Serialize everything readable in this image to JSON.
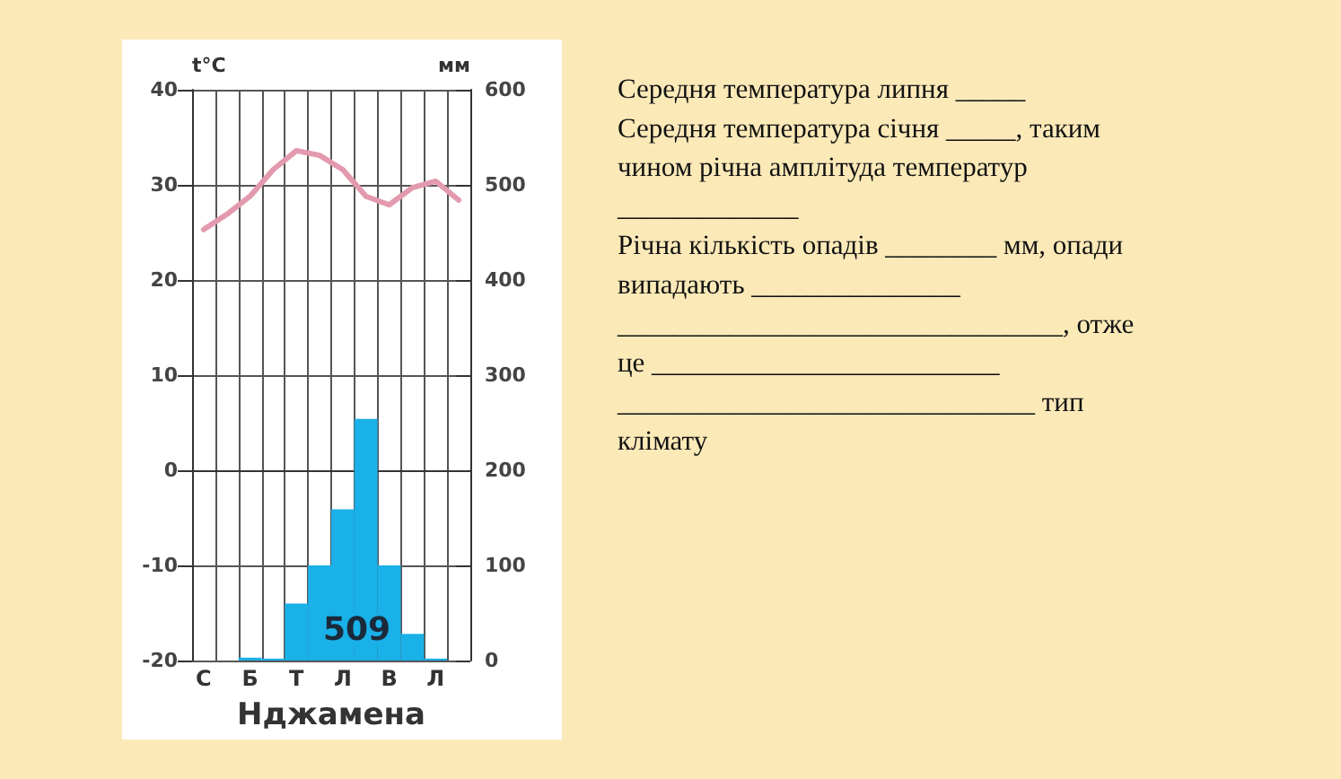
{
  "chart_data": {
    "type": "bar",
    "xlabel": "Нджамена",
    "ylabel": "t°C",
    "y2label": "мм",
    "categories": [
      "С",
      null,
      "Б",
      null,
      "Т",
      null,
      "Л",
      null,
      "В",
      null,
      "Л",
      null
    ],
    "series": [
      {
        "type": "line",
        "color": "#e39aae",
        "values": [
          25.3,
          26.9,
          28.8,
          31.6,
          33.6,
          33.1,
          31.6,
          28.8,
          27.9,
          29.7,
          30.4,
          28.4
        ]
      },
      {
        "axis": "y2",
        "color": "#1ab0e8",
        "values": [
          0,
          0,
          3,
          2,
          60,
          100,
          159,
          254,
          100,
          28,
          2,
          0
        ]
      }
    ],
    "ylim": [
      -20,
      40
    ],
    "yticks": [
      -20,
      -10,
      0,
      10,
      20,
      30,
      40
    ],
    "y2lim": [
      0,
      600
    ],
    "y2ticks": [
      0,
      100,
      200,
      300,
      400,
      500,
      600
    ],
    "grid": true,
    "marker": "none",
    "annotations": [
      "509",
      "Середня температура липня _____",
      "Середня температура січня _____, таким",
      "чином річна амплітуда температур",
      "_____________",
      "Річна кількість опадів ________ мм, опади",
      "випадають _______________",
      "________________________________, отже",
      "це _________________________",
      "______________________________ тип",
      "клімату"
    ]
  }
}
